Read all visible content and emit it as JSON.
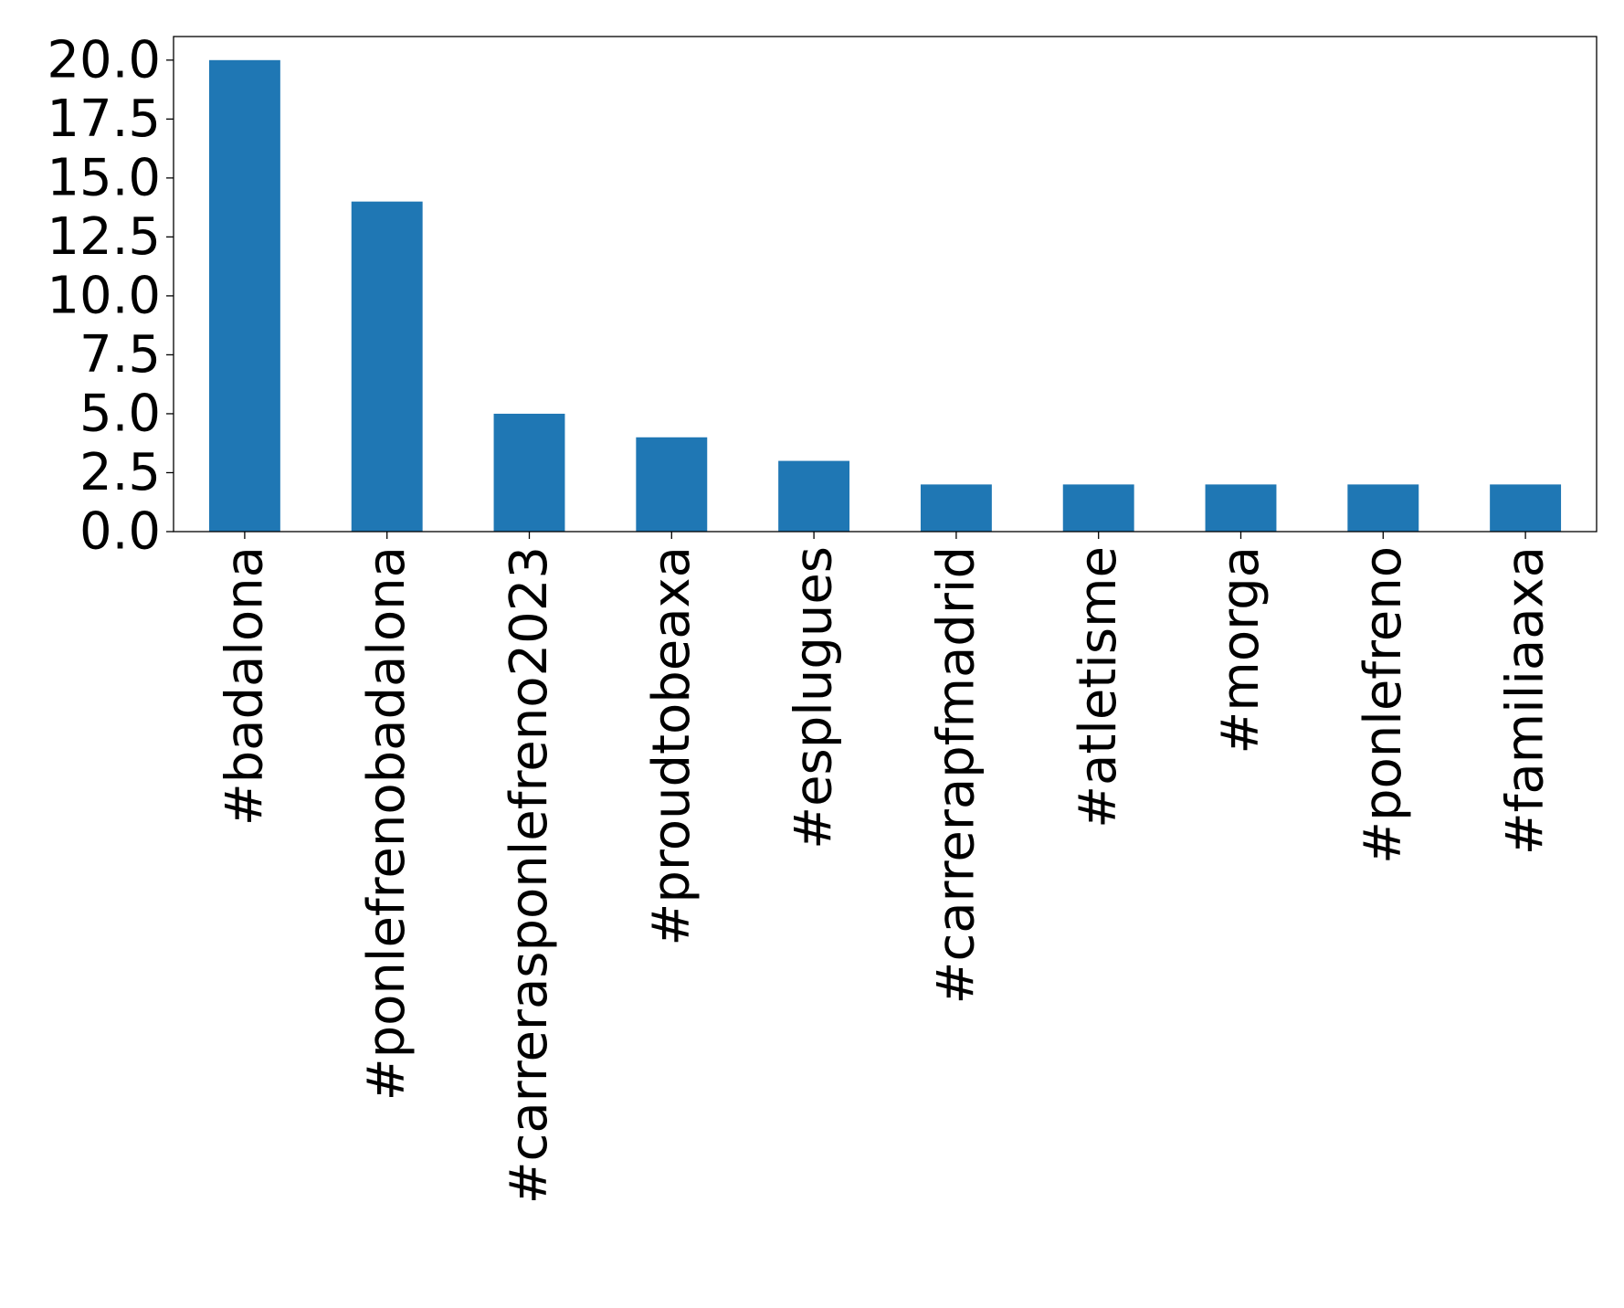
{
  "chart_data": {
    "type": "bar",
    "title": "",
    "xlabel": "",
    "ylabel": "",
    "categories": [
      "#badalona",
      "#ponlefrenobadalona",
      "#carrerasponlefreno2023",
      "#proudtobeaxa",
      "#esplugues",
      "#carrerapfmadrid",
      "#atletisme",
      "#morga",
      "#ponlefreno",
      "#familiaaxa"
    ],
    "values": [
      20,
      14,
      5,
      4,
      3,
      2,
      2,
      2,
      2,
      2
    ],
    "ylim": [
      0,
      21
    ],
    "yticks": [
      "0.0",
      "2.5",
      "5.0",
      "7.5",
      "10.0",
      "12.5",
      "15.0",
      "17.5",
      "20.0"
    ],
    "bar_color": "#1f77b4",
    "grid": false,
    "legend": "none"
  }
}
